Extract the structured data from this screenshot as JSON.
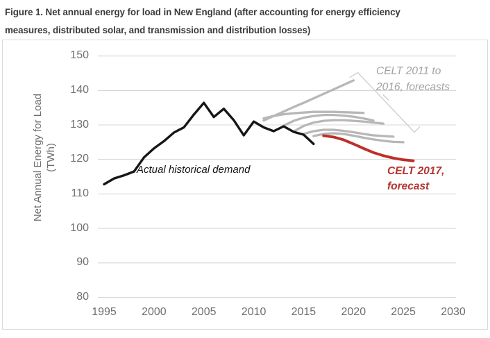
{
  "header": {
    "title_lines": [
      "Figure 1. Net annual energy for load in New England (after accounting for energy efficiency",
      "measures, distributed solar, and transmission and distribution losses)"
    ]
  },
  "chart_data": {
    "type": "line",
    "title": "Figure 1. Net annual energy for load in New England (after accounting for energy efficiency measures, distributed solar, and transmission and distribution losses)",
    "ylabel_lines": [
      "Net Annual Energy for Load",
      "(TWh)"
    ],
    "xlabel": "",
    "xlim": [
      1995,
      2030
    ],
    "ylim": [
      80,
      150
    ],
    "x_ticks": [
      1995,
      2000,
      2005,
      2010,
      2015,
      2020,
      2025,
      2030
    ],
    "y_ticks": [
      150,
      140,
      130,
      120,
      110,
      100,
      90,
      80
    ],
    "grid": "horizontal-only",
    "legend": "inline-annotations",
    "colors": {
      "historical": "#161616",
      "prior_forecasts": "#b7b7b7",
      "current_forecast": "#bd2f28",
      "gridline": "#d7d7d7",
      "bracket": "#cdcdcd"
    },
    "series": [
      {
        "id": "celt-2011-forecast",
        "name": "CELT 2011 forecast",
        "kind": "forecast_prior",
        "color": "#b7b7b7",
        "start_year": 2011,
        "values": [
          131.3,
          132.6,
          133.9,
          135.2,
          136.4,
          137.7,
          139.0,
          140.3,
          141.6,
          142.9
        ]
      },
      {
        "id": "celt-2012-forecast",
        "name": "CELT 2012 forecast",
        "kind": "forecast_prior",
        "color": "#b7b7b7",
        "start_year": 2011,
        "values": [
          131.9,
          132.6,
          133.1,
          133.4,
          133.6,
          133.8,
          133.8,
          133.8,
          133.7,
          133.6,
          133.5
        ]
      },
      {
        "id": "celt-2013-forecast",
        "name": "CELT 2013 forecast",
        "kind": "forecast_prior",
        "color": "#b7b7b7",
        "start_year": 2013,
        "values": [
          129.8,
          131.2,
          132.1,
          132.6,
          132.9,
          132.9,
          132.7,
          132.4,
          131.9,
          131.3
        ]
      },
      {
        "id": "celt-2014-forecast",
        "name": "CELT 2014 forecast",
        "kind": "forecast_prior",
        "color": "#b7b7b7",
        "start_year": 2014,
        "values": [
          128.1,
          129.7,
          130.7,
          131.2,
          131.4,
          131.4,
          131.2,
          131.0,
          130.7,
          130.4
        ]
      },
      {
        "id": "celt-2015-forecast",
        "name": "CELT 2015 forecast",
        "kind": "forecast_prior",
        "color": "#b7b7b7",
        "start_year": 2015,
        "values": [
          127.4,
          128.2,
          128.6,
          128.6,
          128.3,
          127.9,
          127.4,
          127.0,
          126.8,
          126.6
        ]
      },
      {
        "id": "celt-2016-forecast",
        "name": "CELT 2016 forecast",
        "kind": "forecast_prior",
        "color": "#b7b7b7",
        "start_year": 2016,
        "values": [
          126.8,
          127.4,
          127.6,
          127.4,
          126.9,
          126.3,
          125.8,
          125.4,
          125.1,
          125.0
        ]
      },
      {
        "id": "celt-2017-forecast",
        "name": "CELT 2017 forecast",
        "kind": "forecast_current",
        "color": "#bd2f28",
        "start_year": 2017,
        "values": [
          126.9,
          126.5,
          125.7,
          124.5,
          123.2,
          122.0,
          121.1,
          120.4,
          119.9,
          119.6
        ]
      },
      {
        "id": "actual-historical-demand",
        "name": "Actual historical demand",
        "kind": "historical",
        "color": "#161616",
        "start_year": 1995,
        "values": [
          112.8,
          114.5,
          115.4,
          116.5,
          120.6,
          123.2,
          125.3,
          127.8,
          129.3,
          133.0,
          136.4,
          132.3,
          134.7,
          131.4,
          127.0,
          131.0,
          129.3,
          128.2,
          129.6,
          128.0,
          127.2,
          124.5
        ]
      }
    ],
    "annotations": {
      "historical_label": "Actual historical demand",
      "prior_forecasts_label_lines": [
        "CELT 2011 to",
        "2016, forecasts"
      ],
      "current_forecast_label_lines": [
        "CELT 2017,",
        "forecast"
      ]
    }
  }
}
